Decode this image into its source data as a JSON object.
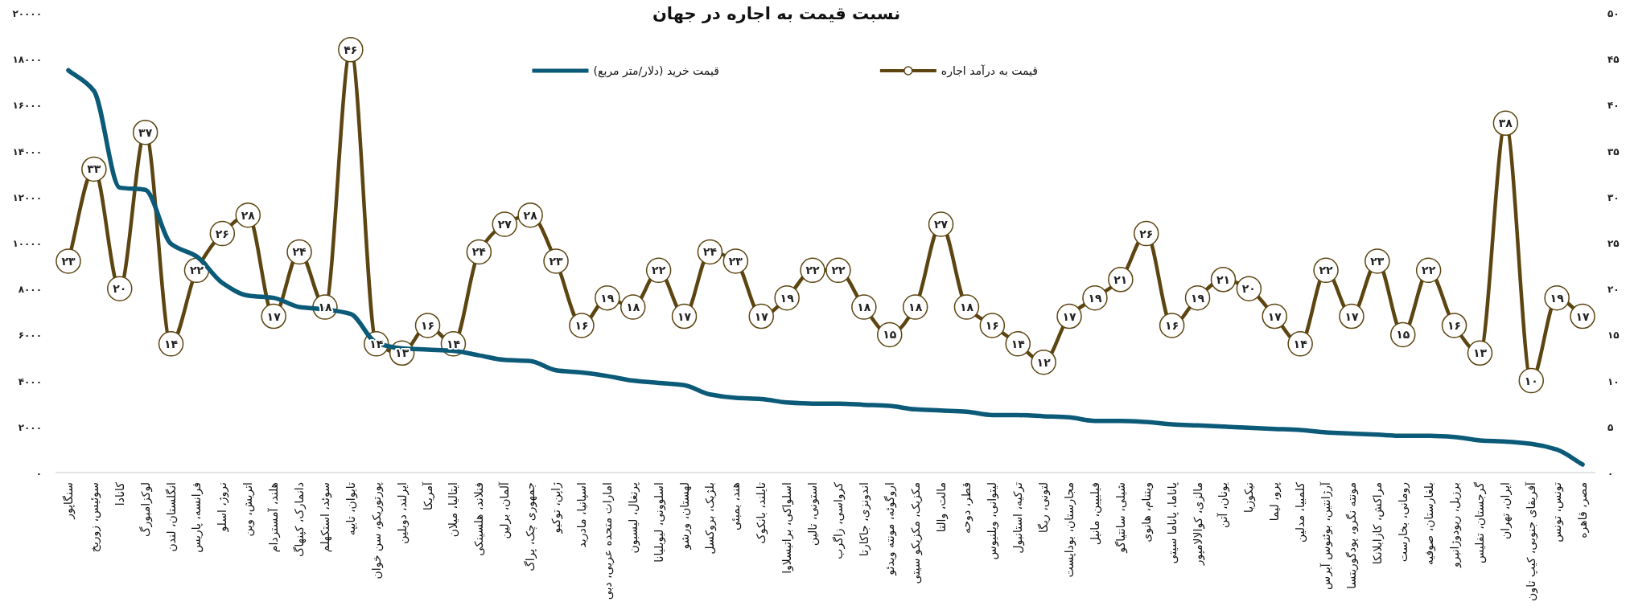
{
  "chart_data": {
    "type": "line",
    "title": "نسبت قیمت به اجاره در جهان",
    "categories": [
      "سنگاپور",
      "سوئیس، زوریخ",
      "کانادا",
      "لوکزامبورگ",
      "انگلستان، لندن",
      "فرانسه، پاریس",
      "نروژ، اسلو",
      "اتریش، وین",
      "هلند، آمستردام",
      "دانمارک، کپنهاگ",
      "سوئد، استکهلم",
      "تایوان، تایپه",
      "پورتوریکو، سن خوان",
      "ایرلند، دوبلین",
      "آمریکا",
      "ایتالیا، میلان",
      "فنلاند، هلسینکی",
      "آلمان، برلین",
      "جمهوری چک، پراگ",
      "ژاپن، توکیو",
      "اسپانیا، مادرید",
      "امارات متحده عربی، دبی",
      "پرتغال، لیسبون",
      "اسلوونی، لیوبلیانا",
      "لهستان، ورشو",
      "بلژیک، بروکسل",
      "هند، بمبئی",
      "تایلند، بانکوک",
      "اسلواکی، براتیسلاوا",
      "استونی، تالین",
      "کرواسی، زاگرب",
      "اندونزی، جاکارتا",
      "اروگوئه، مونته ویدئو",
      "مکزیک، مکزیکو سیتی",
      "مالت، والتا",
      "قطر، دوحه",
      "لیتوانی، ویلنیوس",
      "ترکیه، استانبول",
      "لتونی، ریگا",
      "مجارستان، بوداپست",
      "فیلیپین، مانیل",
      "شیلی، سانتیاگو",
      "ویتنام، هانوی",
      "پاناما، پاناما سیتی",
      "مالزی، کوالالامپور",
      "یونان، آتن",
      "نیکوزیا",
      "پرو، لیما",
      "کلمبیا، مدلین",
      "آرژانتین، بوئنوس آیرس",
      "مونته نگرو، پودگوریتسا",
      "مراکش، کازابلانکا",
      "رومانی، بخارست",
      "بلغارستان، صوفیه",
      "برزیل، ریودوژانیرو",
      "گرجستان، تفلیس",
      "ایران، تهران",
      "آفریقای جنوبی، کیپ تاون",
      "تونس، تونس",
      "مصر، قاهره"
    ],
    "series": [
      {
        "name": "قیمت به درآمد اجاره",
        "color": "#5c4511",
        "axis": "y2",
        "marker": "circle",
        "values": [
          23,
          33,
          20,
          37,
          14,
          22,
          26,
          28,
          17,
          24,
          18,
          46,
          14,
          13,
          16,
          14,
          24,
          27,
          28,
          23,
          16,
          19,
          18,
          22,
          17,
          24,
          23,
          17,
          19,
          22,
          22,
          18,
          15,
          18,
          27,
          18,
          16,
          14,
          12,
          17,
          19,
          21,
          26,
          16,
          19,
          21,
          20,
          17,
          14,
          22,
          17,
          23,
          15,
          22,
          16,
          13,
          38,
          10,
          19,
          17
        ],
        "value_labels": [
          "۲۳",
          "۳۳",
          "۲۰",
          "۳۷",
          "۱۴",
          "۲۲",
          "۲۶",
          "۲۸",
          "۱۷",
          "۲۴",
          "۱۸",
          "۴۶",
          "۱۴",
          "۱۳",
          "۱۶",
          "۱۴",
          "۲۴",
          "۲۷",
          "۲۸",
          "۲۳",
          "۱۶",
          "۱۹",
          "۱۸",
          "۲۲",
          "۱۷",
          "۲۴",
          "۲۳",
          "۱۷",
          "۱۹",
          "۲۲",
          "۲۲",
          "۱۸",
          "۱۵",
          "۱۸",
          "۲۷",
          "۱۸",
          "۱۶",
          "۱۴",
          "۱۲",
          "۱۷",
          "۱۹",
          "۲۱",
          "۲۶",
          "۱۶",
          "۱۹",
          "۲۱",
          "۲۰",
          "۱۷",
          "۱۴",
          "۲۲",
          "۱۷",
          "۲۳",
          "۱۵",
          "۲۲",
          "۱۶",
          "۱۳",
          "۳۸",
          "۱۰",
          "۱۹",
          "۱۷"
        ]
      },
      {
        "name": "قیمت خرید (دلار/متر مربع)",
        "color": "#0b5a78",
        "axis": "y",
        "marker": "none",
        "values": [
          17500,
          16600,
          12400,
          12300,
          9950,
          9400,
          8250,
          7700,
          7600,
          7200,
          7100,
          6900,
          5650,
          5400,
          5350,
          5300,
          5100,
          4900,
          4850,
          4450,
          4350,
          4200,
          4000,
          3900,
          3800,
          3400,
          3250,
          3200,
          3050,
          3000,
          3000,
          2950,
          2900,
          2750,
          2700,
          2650,
          2500,
          2500,
          2450,
          2400,
          2250,
          2250,
          2200,
          2100,
          2050,
          2000,
          1950,
          1900,
          1850,
          1750,
          1700,
          1650,
          1600,
          1600,
          1550,
          1400,
          1350,
          1250,
          1000,
          350
        ]
      }
    ],
    "ylim": [
      0,
      20000
    ],
    "yticks": [
      {
        "value": 0,
        "label": "۰"
      },
      {
        "value": 2000,
        "label": "۲۰۰۰"
      },
      {
        "value": 4000,
        "label": "۴۰۰۰"
      },
      {
        "value": 6000,
        "label": "۶۰۰۰"
      },
      {
        "value": 8000,
        "label": "۸۰۰۰"
      },
      {
        "value": 10000,
        "label": "۱۰۰۰۰"
      },
      {
        "value": 12000,
        "label": "۱۲۰۰۰"
      },
      {
        "value": 14000,
        "label": "۱۴۰۰۰"
      },
      {
        "value": 16000,
        "label": "۱۶۰۰۰"
      },
      {
        "value": 18000,
        "label": "۱۸۰۰۰"
      },
      {
        "value": 20000,
        "label": "۲۰۰۰۰"
      }
    ],
    "y2lim": [
      0,
      50
    ],
    "y2ticks": [
      {
        "value": 0,
        "label": "۰"
      },
      {
        "value": 5,
        "label": "۵"
      },
      {
        "value": 10,
        "label": "۱۰"
      },
      {
        "value": 15,
        "label": "۱۵"
      },
      {
        "value": 20,
        "label": "۲۰"
      },
      {
        "value": 25,
        "label": "۲۵"
      },
      {
        "value": 30,
        "label": "۳۰"
      },
      {
        "value": 35,
        "label": "۳۵"
      },
      {
        "value": 40,
        "label": "۴۰"
      },
      {
        "value": 45,
        "label": "۴۵"
      },
      {
        "value": 50,
        "label": "۵۰"
      }
    ],
    "legend": "top"
  }
}
